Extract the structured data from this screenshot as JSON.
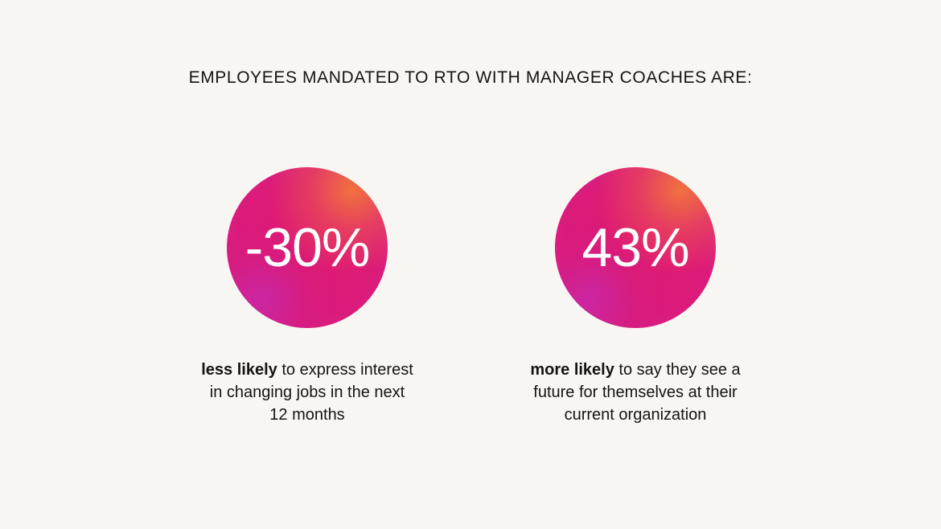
{
  "headline": "EMPLOYEES MANDATED TO RTO WITH MANAGER COACHES ARE:",
  "stats": [
    {
      "value": "-30%",
      "emphasis": "less likely",
      "line1_rest": " to express interest",
      "line2": "in changing jobs in the next",
      "line3": "12 months"
    },
    {
      "value": "43%",
      "emphasis": "more likely",
      "line1_rest": " to say they see a",
      "line2": "future for themselves at their",
      "line3": "current organization"
    }
  ],
  "colors": {
    "background": "#f8f6f2",
    "circle_main": "#e01a6e",
    "circle_orange": "#f3763a",
    "circle_purple": "#c828aa",
    "text": "#141414"
  }
}
